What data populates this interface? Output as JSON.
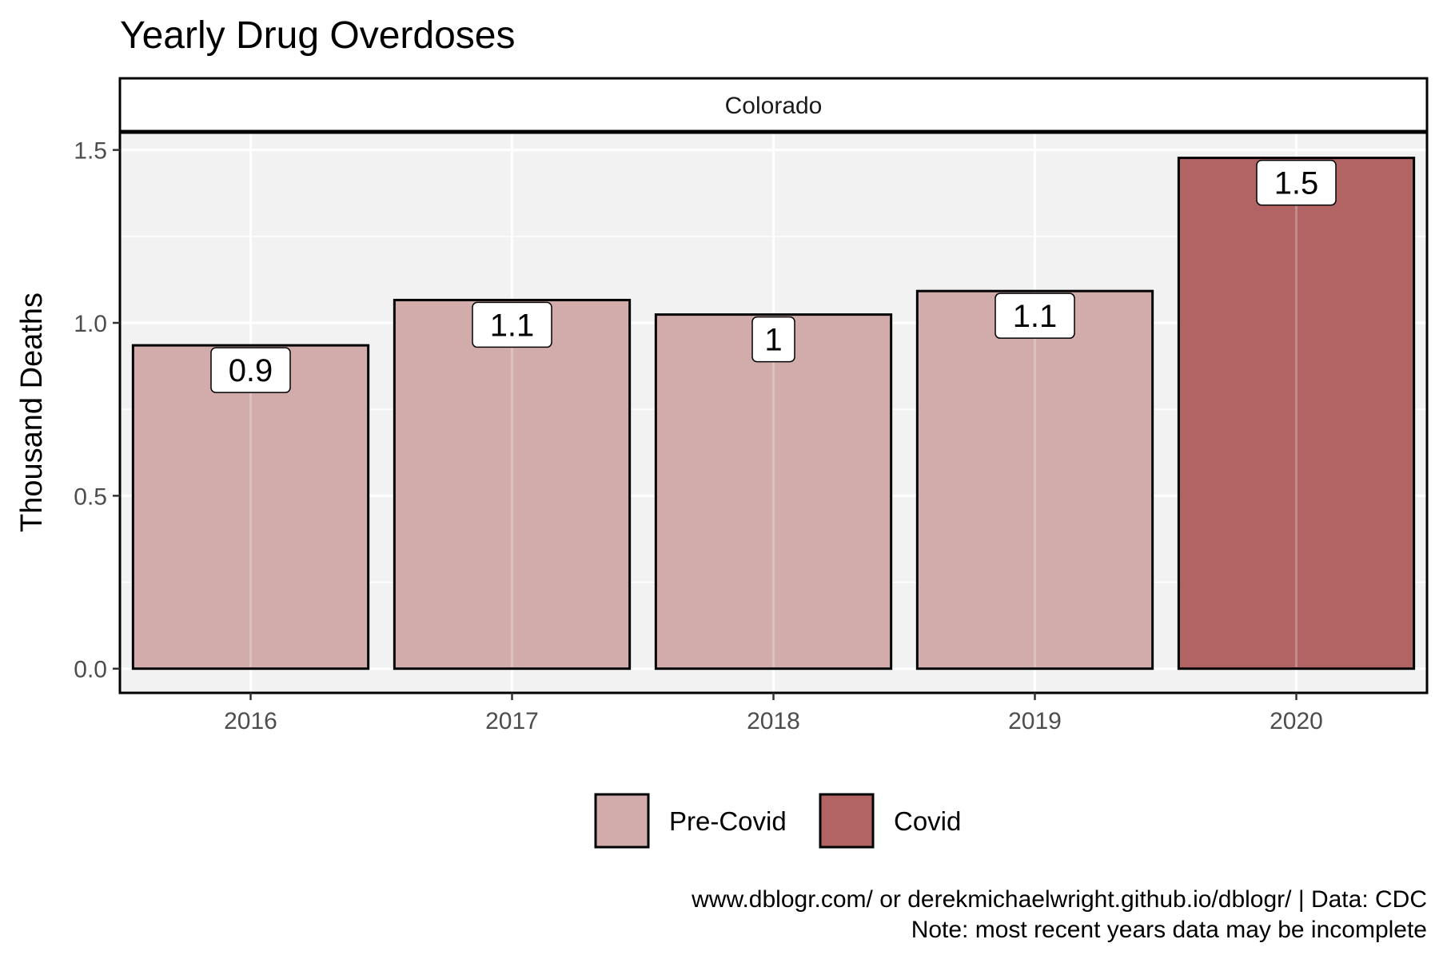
{
  "chart_data": {
    "type": "bar",
    "title": "Yearly Drug Overdoses",
    "facet": "Colorado",
    "xlabel": "",
    "ylabel": "Thousand Deaths",
    "categories": [
      "2016",
      "2017",
      "2018",
      "2019",
      "2020"
    ],
    "values": [
      0.935,
      1.066,
      1.024,
      1.092,
      1.477
    ],
    "data_labels": [
      "0.9",
      "1.1",
      "1",
      "1.1",
      "1.5"
    ],
    "groups": [
      "Pre-Covid",
      "Pre-Covid",
      "Pre-Covid",
      "Pre-Covid",
      "Covid"
    ],
    "ylim": [
      -0.07,
      1.55
    ],
    "yticks": [
      0.0,
      0.5,
      1.0,
      1.5
    ],
    "ytick_labels": [
      "0.0",
      "0.5",
      "1.0",
      "1.5"
    ],
    "grid": true,
    "legend": {
      "position": "bottom",
      "items": [
        {
          "label": "Pre-Covid",
          "color": "#d2abab"
        },
        {
          "label": "Covid",
          "color": "#b26464"
        }
      ]
    },
    "caption": [
      "www.dblogr.com/ or derekmichaelwright.github.io/dblogr/ | Data: CDC",
      "Note: most recent years data may be incomplete"
    ]
  },
  "colors": {
    "panel_background": "#f2f2f2",
    "grid": "#ffffff",
    "pre_covid": "#d2abab",
    "covid": "#b26464"
  }
}
